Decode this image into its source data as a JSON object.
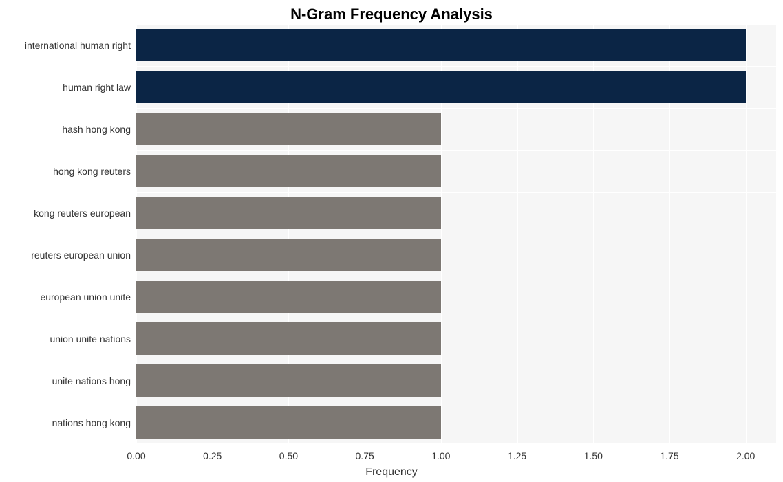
{
  "chart": {
    "type": "bar",
    "orientation": "horizontal",
    "title": "N-Gram Frequency Analysis",
    "title_fontsize": 22,
    "title_fontweight": "bold",
    "xlabel": "Frequency",
    "label_fontsize": 16,
    "tick_fontsize": 14,
    "categories": [
      "international human right",
      "human right law",
      "hash hong kong",
      "hong kong reuters",
      "kong reuters european",
      "reuters european union",
      "european union unite",
      "union unite nations",
      "unite nations hong",
      "nations hong kong"
    ],
    "values": [
      2.0,
      2.0,
      1.0,
      1.0,
      1.0,
      1.0,
      1.0,
      1.0,
      1.0,
      1.0
    ],
    "bar_colors": [
      "#0b2545",
      "#0b2545",
      "#7d7873",
      "#7d7873",
      "#7d7873",
      "#7d7873",
      "#7d7873",
      "#7d7873",
      "#7d7873",
      "#7d7873"
    ],
    "xlim": [
      0.0,
      2.1
    ],
    "xticks": [
      0.0,
      0.25,
      0.5,
      0.75,
      1.0,
      1.25,
      1.5,
      1.75,
      2.0
    ],
    "xtick_labels": [
      "0.00",
      "0.25",
      "0.50",
      "0.75",
      "1.00",
      "1.25",
      "1.50",
      "1.75",
      "2.00"
    ],
    "background_color": "#f6f6f6",
    "grid_color": "#ffffff",
    "bar_width": 0.77,
    "tick_color": "#333333"
  }
}
